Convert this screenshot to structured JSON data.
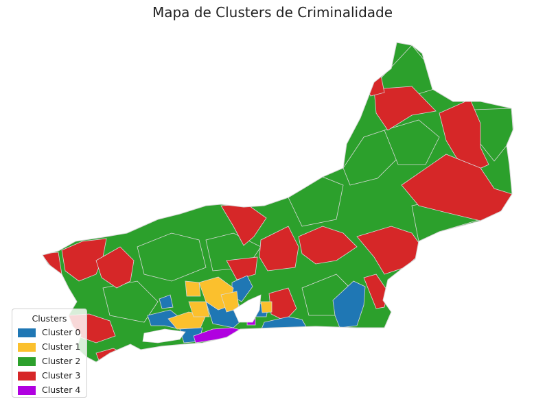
{
  "title": "Mapa de Clusters de Criminalidade",
  "legend": {
    "title": "Clusters",
    "placement": "lower-left",
    "items": [
      {
        "label": "Cluster 0",
        "color": "#1f77b4"
      },
      {
        "label": "Cluster 1",
        "color": "#fbc02d"
      },
      {
        "label": "Cluster 2",
        "color": "#2ca02c"
      },
      {
        "label": "Cluster 3",
        "color": "#d62728"
      },
      {
        "label": "Cluster 4",
        "color": "#b000e0"
      }
    ]
  },
  "colors": {
    "border": "#d9d9d9",
    "background": "#ffffff"
  }
}
